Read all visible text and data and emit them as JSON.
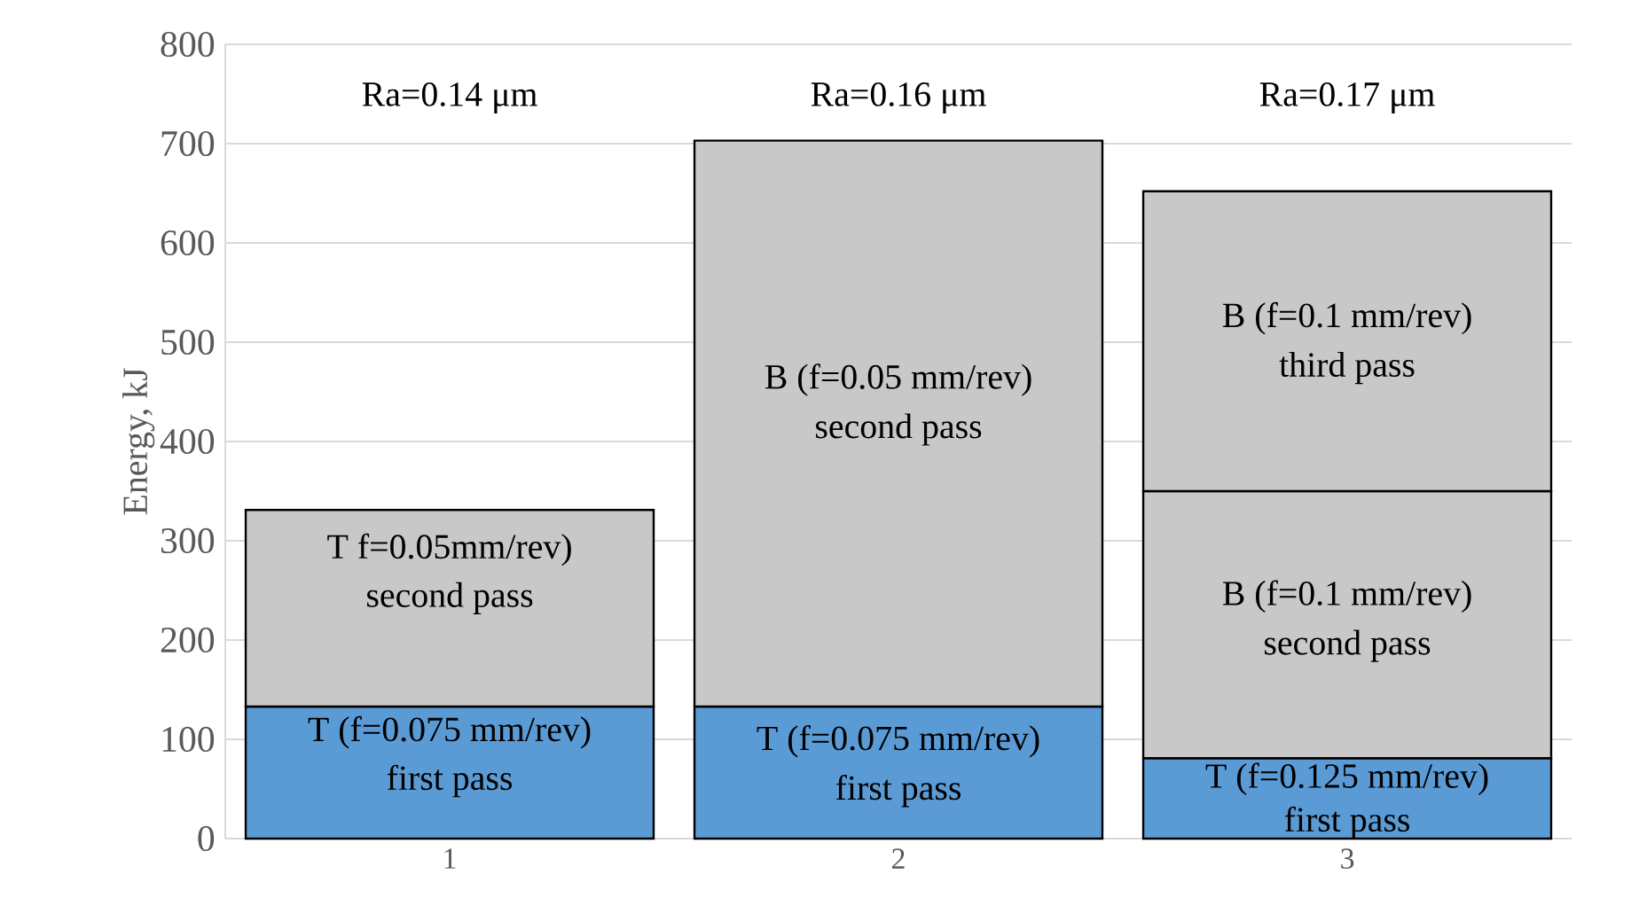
{
  "chart_data": {
    "type": "bar",
    "stacked": true,
    "ylabel": "Energy, kJ",
    "categories": [
      "1",
      "2",
      "3"
    ],
    "series": [
      {
        "color": "#5b9bd5",
        "values": [
          133,
          133,
          81
        ]
      },
      {
        "color": "#c8c8c8",
        "values": [
          198,
          570,
          269
        ]
      },
      {
        "color": "#c8c8c8",
        "values": [
          null,
          null,
          302
        ]
      }
    ],
    "ylim": [
      0,
      800
    ],
    "yticks": [
      0,
      100,
      200,
      300,
      400,
      500,
      600,
      700,
      800
    ],
    "grid": "y",
    "annotations": [
      "Ra=0.14 μm",
      "Ra=0.16 μm",
      "Ra=0.17 μm",
      "T f=0.05mm/rev)",
      "second pass",
      "T (f=0.075 mm/rev)",
      "first pass",
      "B (f=0.05 mm/rev)",
      "second pass",
      "T (f=0.075 mm/rev)",
      "first pass",
      "B (f=0.1 mm/rev)",
      "third pass",
      "B (f=0.1 mm/rev)",
      "second pass",
      "T (f=0.125 mm/rev)",
      "first pass"
    ]
  }
}
